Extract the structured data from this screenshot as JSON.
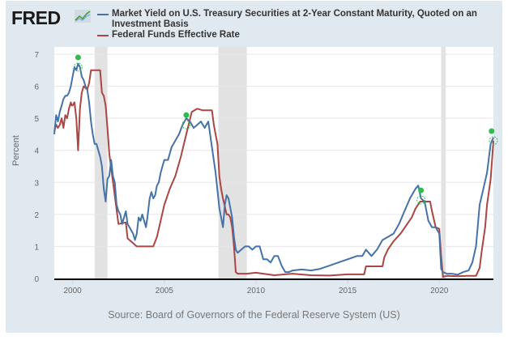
{
  "header": {
    "logo_text": "FRED",
    "logo_icon": "line-chart-icon"
  },
  "chart_data": {
    "type": "line",
    "title": "",
    "xlabel": "",
    "ylabel": "Percent",
    "xlim": [
      1999.0,
      2022.95
    ],
    "ylim": [
      0,
      7
    ],
    "grid": true,
    "legend_position": "top",
    "x_ticks": [
      2000,
      2005,
      2010,
      2015,
      2020
    ],
    "x_tick_labels": [
      "2000",
      "2005",
      "2010",
      "2015",
      "2020"
    ],
    "y_ticks": [
      0,
      1,
      2,
      3,
      4,
      5,
      6,
      7
    ],
    "y_tick_labels": [
      "0",
      "1",
      "2",
      "3",
      "4",
      "5",
      "6",
      "7"
    ],
    "recessions": [
      [
        2001.2,
        2001.9
      ],
      [
        2007.95,
        2009.5
      ],
      [
        2020.1,
        2020.35
      ]
    ],
    "series": [
      {
        "name": "Market Yield on U.S. Treasury Securities at 2-Year Constant Maturity, Quoted on an Investment Basis",
        "color": "#4572a7",
        "x": [
          1999.0,
          1999.1,
          1999.2,
          1999.3,
          1999.4,
          1999.5,
          1999.6,
          1999.7,
          1999.8,
          1999.9,
          2000.0,
          2000.1,
          2000.2,
          2000.3,
          2000.4,
          2000.5,
          2000.6,
          2000.7,
          2000.8,
          2000.9,
          2001.0,
          2001.1,
          2001.2,
          2001.3,
          2001.4,
          2001.5,
          2001.6,
          2001.7,
          2001.8,
          2001.9,
          2002.0,
          2002.1,
          2002.2,
          2002.3,
          2002.4,
          2002.5,
          2002.6,
          2002.7,
          2002.8,
          2002.9,
          2003.0,
          2003.1,
          2003.2,
          2003.3,
          2003.4,
          2003.5,
          2003.6,
          2003.7,
          2003.8,
          2003.9,
          2004.0,
          2004.1,
          2004.2,
          2004.3,
          2004.4,
          2004.5,
          2004.6,
          2004.7,
          2004.8,
          2004.9,
          2005.0,
          2005.2,
          2005.4,
          2005.6,
          2005.8,
          2006.0,
          2006.2,
          2006.4,
          2006.6,
          2006.8,
          2007.0,
          2007.2,
          2007.4,
          2007.6,
          2007.8,
          2008.0,
          2008.2,
          2008.3,
          2008.4,
          2008.5,
          2008.6,
          2008.7,
          2008.8,
          2008.9,
          2009.0,
          2009.2,
          2009.4,
          2009.6,
          2009.8,
          2010.0,
          2010.2,
          2010.4,
          2010.6,
          2010.8,
          2011.0,
          2011.2,
          2011.4,
          2011.6,
          2011.8,
          2012.0,
          2012.5,
          2013.0,
          2013.5,
          2014.0,
          2014.5,
          2015.0,
          2015.5,
          2015.8,
          2016.0,
          2016.3,
          2016.6,
          2016.9,
          2017.2,
          2017.5,
          2017.8,
          2018.1,
          2018.4,
          2018.7,
          2018.85,
          2019.0,
          2019.2,
          2019.4,
          2019.6,
          2019.8,
          2020.0,
          2020.1,
          2020.2,
          2020.4,
          2020.7,
          2021.0,
          2021.3,
          2021.6,
          2021.8,
          2022.0,
          2022.2,
          2022.4,
          2022.6,
          2022.8,
          2022.95
        ],
        "y": [
          4.5,
          5.1,
          4.9,
          5.2,
          5.4,
          5.6,
          5.7,
          5.7,
          5.8,
          6.0,
          6.3,
          6.6,
          6.5,
          6.7,
          6.6,
          6.3,
          6.2,
          6.0,
          5.9,
          5.5,
          4.9,
          4.5,
          4.2,
          4.2,
          4.0,
          3.8,
          3.5,
          2.8,
          2.4,
          3.1,
          3.2,
          3.7,
          3.2,
          3.0,
          2.3,
          2.1,
          2.0,
          1.7,
          1.9,
          2.1,
          1.7,
          1.6,
          1.5,
          1.4,
          1.2,
          1.4,
          1.9,
          1.8,
          2.0,
          1.8,
          1.6,
          2.0,
          2.5,
          2.7,
          2.5,
          2.6,
          2.9,
          3.0,
          3.3,
          3.5,
          3.7,
          3.7,
          4.1,
          4.3,
          4.5,
          4.8,
          5.0,
          4.9,
          4.7,
          4.8,
          4.9,
          4.7,
          4.9,
          4.1,
          3.3,
          2.2,
          1.6,
          2.3,
          2.6,
          2.5,
          2.2,
          1.9,
          1.3,
          0.9,
          0.8,
          0.9,
          1.0,
          1.0,
          0.9,
          1.0,
          1.0,
          0.6,
          0.6,
          0.5,
          0.7,
          0.7,
          0.4,
          0.2,
          0.2,
          0.25,
          0.28,
          0.25,
          0.3,
          0.4,
          0.5,
          0.6,
          0.7,
          0.7,
          0.9,
          0.7,
          0.9,
          1.2,
          1.3,
          1.4,
          1.7,
          2.1,
          2.5,
          2.8,
          2.9,
          2.5,
          2.4,
          1.8,
          1.6,
          1.6,
          1.4,
          0.3,
          0.2,
          0.15,
          0.15,
          0.12,
          0.2,
          0.25,
          0.5,
          1.0,
          2.3,
          2.8,
          3.3,
          4.2,
          4.4
        ]
      },
      {
        "name": "Federal Funds Effective Rate",
        "color": "#aa4643",
        "x": [
          1999.0,
          1999.1,
          1999.2,
          1999.3,
          1999.4,
          1999.5,
          1999.6,
          1999.7,
          1999.8,
          1999.9,
          1999.95,
          2000.0,
          2000.1,
          2000.2,
          2000.3,
          2000.4,
          2000.5,
          2000.6,
          2000.8,
          2000.9,
          2001.0,
          2001.1,
          2001.2,
          2001.3,
          2001.4,
          2001.5,
          2001.6,
          2001.7,
          2001.8,
          2001.9,
          2002.0,
          2002.5,
          2002.9,
          2003.0,
          2003.5,
          2003.6,
          2003.9,
          2004.0,
          2004.4,
          2004.6,
          2004.8,
          2005.0,
          2005.3,
          2005.6,
          2005.9,
          2006.2,
          2006.5,
          2006.8,
          2007.1,
          2007.4,
          2007.6,
          2007.7,
          2007.8,
          2007.9,
          2008.0,
          2008.1,
          2008.2,
          2008.4,
          2008.5,
          2008.6,
          2008.7,
          2008.8,
          2008.9,
          2009.0,
          2009.5,
          2010.0,
          2011.0,
          2012.0,
          2013.0,
          2014.0,
          2015.0,
          2015.9,
          2016.0,
          2016.9,
          2017.0,
          2017.2,
          2017.5,
          2017.9,
          2018.2,
          2018.5,
          2018.7,
          2018.95,
          2019.5,
          2019.6,
          2019.8,
          2020.0,
          2020.1,
          2020.2,
          2020.4,
          2021.0,
          2021.5,
          2022.0,
          2022.2,
          2022.3,
          2022.5,
          2022.6,
          2022.8,
          2022.95
        ],
        "y": [
          4.6,
          4.8,
          4.7,
          4.8,
          5.0,
          4.7,
          5.1,
          5.0,
          5.3,
          5.5,
          5.4,
          5.4,
          5.5,
          5.0,
          4.0,
          5.3,
          5.8,
          6.0,
          5.9,
          6.1,
          6.5,
          6.5,
          6.5,
          6.5,
          6.5,
          6.5,
          5.8,
          5.7,
          5.4,
          4.7,
          3.9,
          1.7,
          1.75,
          1.25,
          1.0,
          1.0,
          1.0,
          1.0,
          1.0,
          1.3,
          1.8,
          2.3,
          2.8,
          3.2,
          3.8,
          4.5,
          5.2,
          5.3,
          5.25,
          5.25,
          5.25,
          4.8,
          4.5,
          4.2,
          3.2,
          2.8,
          2.5,
          2.0,
          2.0,
          1.9,
          1.6,
          1.0,
          0.2,
          0.15,
          0.15,
          0.18,
          0.1,
          0.15,
          0.1,
          0.09,
          0.13,
          0.13,
          0.38,
          0.38,
          0.66,
          0.91,
          1.16,
          1.41,
          1.66,
          1.91,
          2.18,
          2.4,
          2.4,
          2.1,
          1.6,
          1.55,
          0.7,
          0.05,
          0.08,
          0.07,
          0.08,
          0.08,
          0.33,
          0.8,
          1.6,
          2.3,
          3.1,
          4.3
        ]
      }
    ],
    "markers": [
      {
        "series": "Market Yield on U.S. Treasury Securities at 2-Year Constant Maturity, Quoted on an Investment Basis",
        "type": "peak-dot",
        "points": [
          [
            2000.3,
            6.9
          ],
          [
            2006.2,
            5.1
          ],
          [
            2019.0,
            2.75
          ],
          [
            2022.85,
            4.6
          ]
        ]
      },
      {
        "series": "Federal Funds Effective Rate",
        "type": "peak-ring",
        "points": [
          [
            2000.3,
            6.6
          ],
          [
            2006.2,
            4.8
          ],
          [
            2019.0,
            2.45
          ],
          [
            2022.95,
            4.3
          ]
        ]
      }
    ]
  },
  "footer": {
    "source": "Source: Board of Governors of the Federal Reserve System (US)"
  }
}
